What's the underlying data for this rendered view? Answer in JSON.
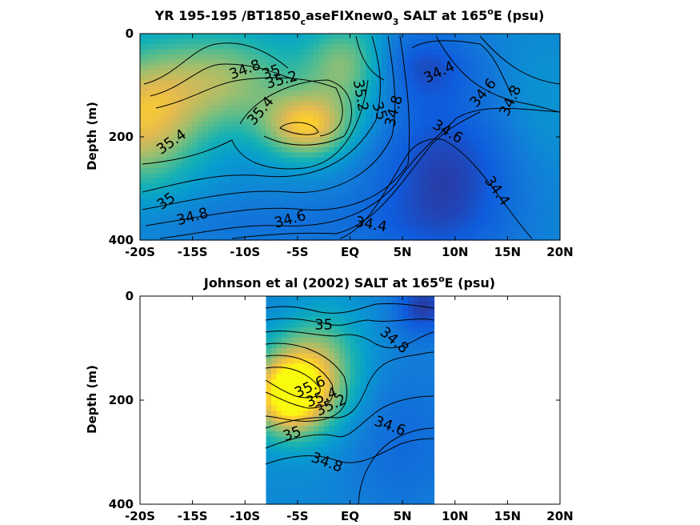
{
  "chart_data": [
    {
      "type": "heatmap",
      "title": "YR 195-195 /BT1850",
      "title_sub1": "c",
      "title_mid": "aseFIXnew0",
      "title_sub2": "3",
      "title_tail": " SALT at 165",
      "title_sup": "o",
      "title_end": "E (psu)",
      "ylabel": "Depth (m)",
      "xticks": [
        "-20S",
        "-15S",
        "-10S",
        "-5S",
        "EQ",
        "5N",
        "10N",
        "15N",
        "20N"
      ],
      "yticks": [
        "0",
        "200",
        "400"
      ],
      "xlim": [
        -20,
        20
      ],
      "ylim": [
        0,
        400
      ],
      "data_xrange": [
        -20,
        20
      ],
      "color_range": [
        34.2,
        35.8
      ],
      "blobs": [
        {
          "x": -20,
          "y": 170,
          "w": 35.5,
          "sx": 4,
          "sy": 90
        },
        {
          "x": -12,
          "y": 90,
          "w": 35.3,
          "sx": 5,
          "sy": 70
        },
        {
          "x": -4,
          "y": 180,
          "w": 35.55,
          "sx": 3,
          "sy": 45
        },
        {
          "x": 0,
          "y": 60,
          "w": 35.35,
          "sx": 3,
          "sy": 60
        },
        {
          "x": 9,
          "y": 280,
          "w": 34.3,
          "sx": 5,
          "sy": 120
        },
        {
          "x": 6,
          "y": 60,
          "w": 34.4,
          "sx": 4,
          "sy": 50
        },
        {
          "x": 18,
          "y": 150,
          "w": 34.85,
          "sx": 3,
          "sy": 90
        },
        {
          "x": -6,
          "y": 370,
          "w": 34.6,
          "sx": 10,
          "sy": 40
        }
      ],
      "contour_labels": [
        {
          "text": "34.8",
          "x": -10,
          "y": 70,
          "rot": -20
        },
        {
          "text": "35",
          "x": -7.5,
          "y": 75,
          "rot": -20
        },
        {
          "text": "35.2",
          "x": -6.5,
          "y": 90,
          "rot": -15
        },
        {
          "text": "35.4",
          "x": -8.5,
          "y": 150,
          "rot": -50
        },
        {
          "text": "35.4",
          "x": -17,
          "y": 210,
          "rot": -35
        },
        {
          "text": "35.2",
          "x": 1,
          "y": 120,
          "rot": 80
        },
        {
          "text": "35",
          "x": 2.8,
          "y": 150,
          "rot": 70
        },
        {
          "text": "34.8",
          "x": 4.2,
          "y": 150,
          "rot": -75
        },
        {
          "text": "34.4",
          "x": 8.5,
          "y": 75,
          "rot": -25
        },
        {
          "text": "34.6",
          "x": 12.7,
          "y": 115,
          "rot": -50
        },
        {
          "text": "34.8",
          "x": 15.3,
          "y": 130,
          "rot": -65
        },
        {
          "text": "34.6",
          "x": 9.3,
          "y": 190,
          "rot": 30
        },
        {
          "text": "34.4",
          "x": 14,
          "y": 305,
          "rot": 55
        },
        {
          "text": "35",
          "x": -17.5,
          "y": 325,
          "rot": -35
        },
        {
          "text": "34.8",
          "x": -15,
          "y": 355,
          "rot": -15
        },
        {
          "text": "34.6",
          "x": -5.7,
          "y": 360,
          "rot": -15
        },
        {
          "text": "34.4",
          "x": 2,
          "y": 370,
          "rot": 10
        }
      ]
    },
    {
      "type": "heatmap",
      "title": "Johnson et al (2002) SALT at 165",
      "title_sup": "o",
      "title_end": "E (psu)",
      "ylabel": "Depth (m)",
      "xticks": [
        "-20S",
        "-15S",
        "-10S",
        "-5S",
        "EQ",
        "5N",
        "10N",
        "15N",
        "20N"
      ],
      "yticks": [
        "0",
        "200",
        "400"
      ],
      "xlim": [
        -20,
        20
      ],
      "ylim": [
        0,
        400
      ],
      "data_xrange": [
        -8,
        8
      ],
      "color_range": [
        34.2,
        35.8
      ],
      "blobs": [
        {
          "x": -6,
          "y": 190,
          "w": 35.75,
          "sx": 2.5,
          "sy": 55
        },
        {
          "x": -3,
          "y": 140,
          "w": 35.35,
          "sx": 3,
          "sy": 80
        },
        {
          "x": 7,
          "y": 20,
          "w": 34.3,
          "sx": 2,
          "sy": 40
        },
        {
          "x": 5,
          "y": 280,
          "w": 34.55,
          "sx": 4,
          "sy": 110
        },
        {
          "x": -6,
          "y": 20,
          "w": 34.7,
          "sx": 3,
          "sy": 30
        }
      ],
      "contour_labels": [
        {
          "text": "35",
          "x": -2.5,
          "y": 55,
          "rot": 0
        },
        {
          "text": "34.8",
          "x": 4.2,
          "y": 85,
          "rot": 40
        },
        {
          "text": "35.6",
          "x": -3.8,
          "y": 175,
          "rot": -25
        },
        {
          "text": "35.4",
          "x": -2.7,
          "y": 195,
          "rot": -20
        },
        {
          "text": "35.2",
          "x": -1.8,
          "y": 210,
          "rot": -25
        },
        {
          "text": "34.6",
          "x": 3.8,
          "y": 250,
          "rot": 20
        },
        {
          "text": "35",
          "x": -5.5,
          "y": 265,
          "rot": -20
        },
        {
          "text": "34.8",
          "x": -2.2,
          "y": 320,
          "rot": 20
        }
      ]
    }
  ]
}
